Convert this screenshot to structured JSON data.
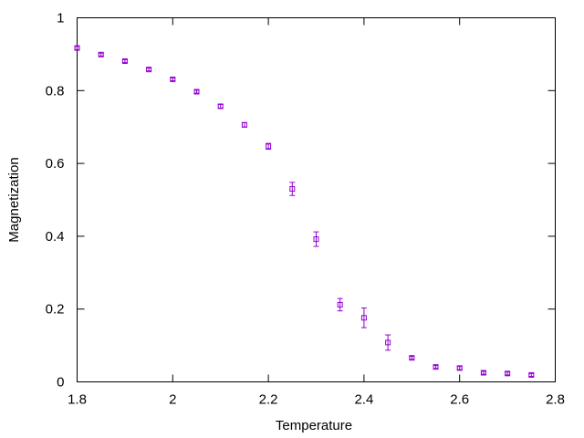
{
  "chart_data": {
    "type": "scatter",
    "title": "",
    "xlabel": "Temperature",
    "ylabel": "Magnetization",
    "xlim": [
      1.8,
      2.8
    ],
    "ylim": [
      0,
      1
    ],
    "xticks": [
      1.8,
      2.0,
      2.2,
      2.4,
      2.6,
      2.8
    ],
    "xtick_labels": [
      "1.8",
      "2",
      "2.2",
      "2.4",
      "2.6",
      "2.8"
    ],
    "yticks": [
      0,
      0.2,
      0.4,
      0.6,
      0.8,
      1.0
    ],
    "ytick_labels": [
      "0",
      "0.2",
      "0.4",
      "0.6",
      "0.8",
      "1"
    ],
    "grid": false,
    "legend": "none",
    "marker_color": "#9400d3",
    "series": [
      {
        "marker": "square-with-errorbars",
        "points": [
          {
            "x": 1.8,
            "y": 0.917,
            "err": 0.004
          },
          {
            "x": 1.85,
            "y": 0.899,
            "err": 0.004
          },
          {
            "x": 1.9,
            "y": 0.881,
            "err": 0.004
          },
          {
            "x": 1.95,
            "y": 0.858,
            "err": 0.004
          },
          {
            "x": 2.0,
            "y": 0.831,
            "err": 0.004
          },
          {
            "x": 2.05,
            "y": 0.797,
            "err": 0.004
          },
          {
            "x": 2.1,
            "y": 0.757,
            "err": 0.005
          },
          {
            "x": 2.15,
            "y": 0.706,
            "err": 0.006
          },
          {
            "x": 2.2,
            "y": 0.647,
            "err": 0.008
          },
          {
            "x": 2.25,
            "y": 0.53,
            "err": 0.018
          },
          {
            "x": 2.3,
            "y": 0.392,
            "err": 0.02
          },
          {
            "x": 2.35,
            "y": 0.212,
            "err": 0.017
          },
          {
            "x": 2.4,
            "y": 0.176,
            "err": 0.027
          },
          {
            "x": 2.45,
            "y": 0.108,
            "err": 0.021
          },
          {
            "x": 2.5,
            "y": 0.066,
            "err": 0.004
          },
          {
            "x": 2.55,
            "y": 0.041,
            "err": 0.004
          },
          {
            "x": 2.6,
            "y": 0.038,
            "err": 0.004
          },
          {
            "x": 2.65,
            "y": 0.025,
            "err": 0.004
          },
          {
            "x": 2.7,
            "y": 0.023,
            "err": 0.004
          },
          {
            "x": 2.75,
            "y": 0.019,
            "err": 0.004
          }
        ]
      }
    ]
  }
}
